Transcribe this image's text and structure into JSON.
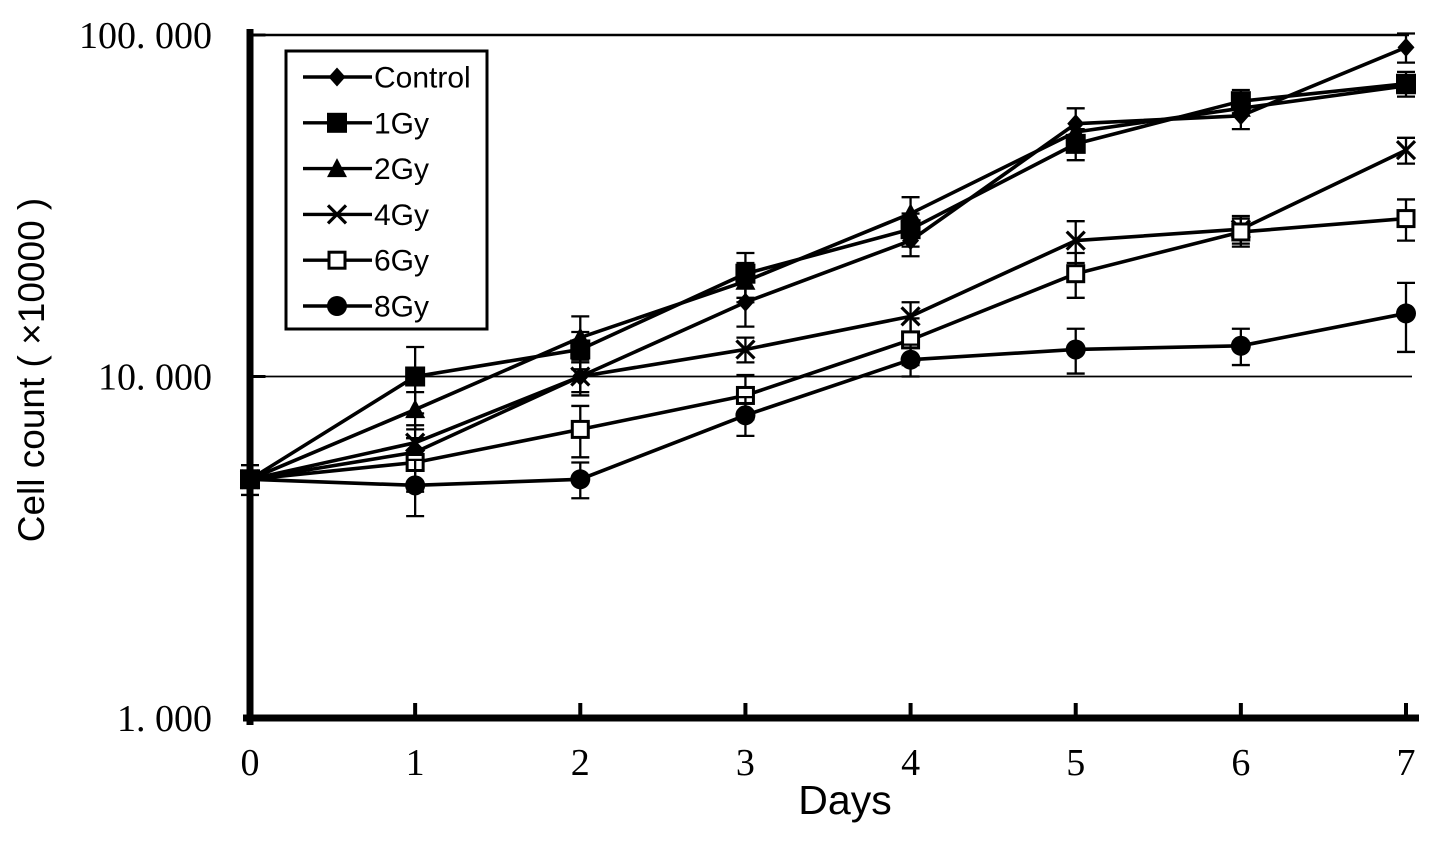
{
  "chart_data": {
    "type": "line",
    "title": "",
    "xlabel": "Days",
    "ylabel": "Cell count ( ×10000 )",
    "y_scale": "log10",
    "ylim": [
      1,
      100
    ],
    "xlim": [
      0,
      7
    ],
    "grid": "horizontal line at 10.000 only",
    "legend_position": "top-left",
    "x": [
      0,
      1,
      2,
      3,
      4,
      5,
      6,
      7
    ],
    "x_tick_labels": [
      "0",
      "1",
      "2",
      "3",
      "4",
      "5",
      "6",
      "7"
    ],
    "y_ticks": [
      {
        "value": 100,
        "label": "100. 000"
      },
      {
        "value": 10,
        "label": "10. 000"
      },
      {
        "value": 1,
        "label": "1. 000"
      }
    ],
    "series": [
      {
        "name": "Control",
        "marker": "filled-diamond",
        "values": [
          5,
          6,
          10,
          16.5,
          25,
          55,
          58,
          92
        ],
        "errors": [
          0,
          0.6,
          1,
          2.5,
          2.5,
          6,
          5,
          9
        ]
      },
      {
        "name": "1Gy",
        "marker": "filled-square",
        "values": [
          5,
          10,
          12,
          20,
          27,
          48,
          64,
          72
        ],
        "errors": [
          0,
          2.2,
          1.5,
          3,
          3,
          5,
          5,
          6
        ]
      },
      {
        "name": "2Gy",
        "marker": "filled-triangle",
        "values": [
          5,
          8,
          13,
          19,
          30,
          52,
          61,
          71
        ],
        "errors": [
          0,
          1,
          2,
          2.5,
          3.5,
          0,
          0,
          0
        ]
      },
      {
        "name": "4Gy",
        "marker": "x-cross",
        "values": [
          5,
          6.4,
          10,
          12,
          15,
          25,
          27,
          46
        ],
        "errors": [
          0,
          0.8,
          1.2,
          1,
          1.5,
          3.5,
          2.5,
          4
        ]
      },
      {
        "name": "6Gy",
        "marker": "open-square",
        "values": [
          5,
          5.6,
          7,
          8.8,
          12.8,
          20,
          26.5,
          29
        ],
        "errors": [
          0.5,
          1,
          1.2,
          1.3,
          2,
          3,
          2.5,
          4
        ]
      },
      {
        "name": "8Gy",
        "marker": "filled-circle",
        "values": [
          5,
          4.8,
          5,
          7.7,
          11.2,
          12,
          12.3,
          15.3
        ],
        "errors": [
          0,
          0.9,
          0.6,
          1,
          1.2,
          1.8,
          1.5,
          3.5
        ]
      }
    ],
    "colors": {
      "foreground": "#000000",
      "background": "#ffffff"
    }
  }
}
